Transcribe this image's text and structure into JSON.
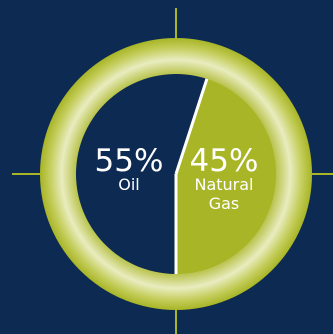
{
  "colors": {
    "background": "#0c2a52",
    "accent": "#a8b526",
    "ring_light": "#e9ecbf",
    "divider": "#ffffff",
    "text": "#ffffff"
  },
  "chart_data": {
    "type": "pie",
    "title": "",
    "slices": [
      {
        "label_lines": [
          "Oil"
        ],
        "value": 55,
        "value_text": "55%",
        "color": "#0c2a52"
      },
      {
        "label_lines": [
          "Natural",
          "Gas"
        ],
        "value": 45,
        "value_text": "45%",
        "color": "#a8b526"
      }
    ],
    "legend": "none"
  }
}
